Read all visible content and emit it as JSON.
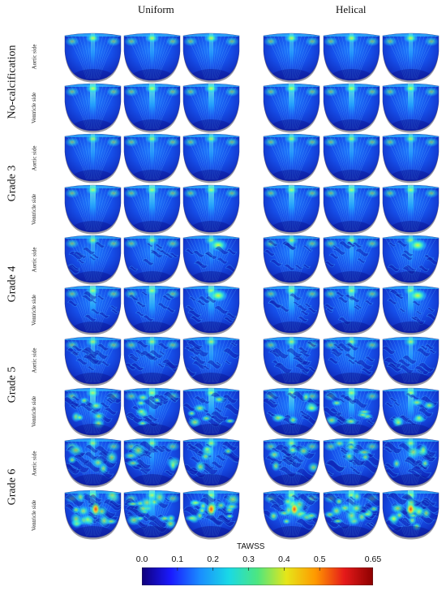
{
  "columns": [
    "Uniform",
    "Helical"
  ],
  "grades": [
    "No-calcification",
    "Grade 3",
    "Grade 4",
    "Grade 5",
    "Grade 6"
  ],
  "sides": [
    "Aortic side",
    "Ventricle side"
  ],
  "colorbar": {
    "title": "TAWSS",
    "ticks": [
      "0.0",
      "0.1",
      "0.2",
      "0.3",
      "0.4",
      "0.5",
      "0.65"
    ],
    "tick_values": [
      0.0,
      0.1,
      0.2,
      0.3,
      0.4,
      0.5,
      0.65
    ],
    "min": 0.0,
    "max": 0.65,
    "colors": [
      "#10007a",
      "#1a1aff",
      "#1a8cff",
      "#19d9e6",
      "#4de680",
      "#e6e619",
      "#ff9900",
      "#e61a1a",
      "#8c0000"
    ]
  }
}
